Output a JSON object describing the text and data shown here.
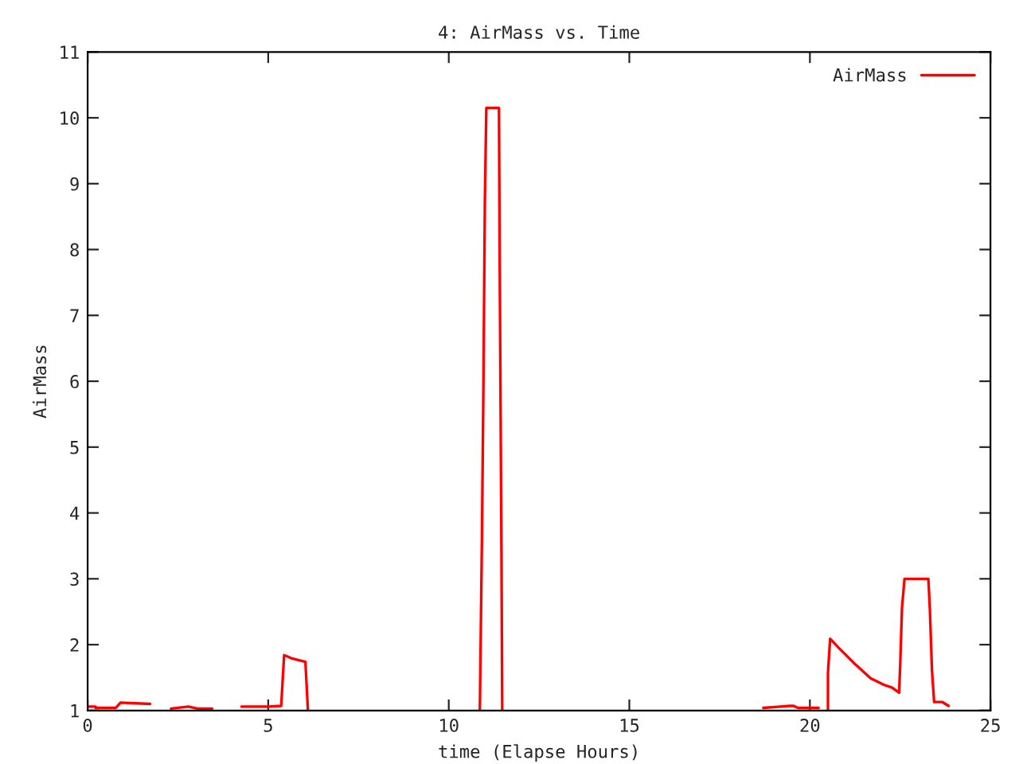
{
  "chart_data": {
    "type": "line",
    "title": "4: AirMass vs. Time",
    "xlabel": "time (Elapse Hours)",
    "ylabel": "AirMass",
    "xlim": [
      0,
      25
    ],
    "xticks": [
      0,
      5,
      10,
      15,
      20,
      25
    ],
    "ylim": [
      1,
      11
    ],
    "yticks": [
      1,
      2,
      3,
      4,
      5,
      6,
      7,
      8,
      9,
      10,
      11
    ],
    "grid": false,
    "legend": "top right",
    "marker": "none",
    "line_style": "solid",
    "series": [
      {
        "name": "AirMass",
        "color": "#ff0000",
        "x": [
          0,
          0.22,
          0.22,
          0.78,
          0.91,
          1.73,
          1.74,
          2.31,
          2.79,
          3.04,
          3.45,
          3.46,
          4.26,
          5.0,
          5.36,
          5.44,
          5.54,
          5.66,
          6.03,
          6.1,
          6.11,
          10.86,
          10.88,
          10.92,
          10.96,
          11.0,
          11.04,
          11.39,
          11.41,
          11.46,
          11.48,
          11.49,
          18.71,
          19.18,
          19.44,
          19.55,
          19.67,
          20.24,
          20.25,
          20.5,
          20.5,
          20.56,
          20.8,
          21.24,
          21.68,
          22.05,
          22.27,
          22.47,
          22.5,
          22.55,
          22.62,
          23.28,
          23.32,
          23.38,
          23.44,
          23.66,
          23.84
        ],
        "values": [
          1.06,
          1.06,
          1.04,
          1.04,
          1.12,
          1.1,
          null,
          1.03,
          1.06,
          1.03,
          1.03,
          null,
          1.06,
          1.06,
          1.07,
          1.84,
          1.82,
          1.79,
          1.74,
          1,
          null,
          1,
          1.89,
          3.68,
          5.98,
          8.75,
          10.15,
          10.15,
          7.85,
          3.29,
          1,
          null,
          1.04,
          1.06,
          1.07,
          1.07,
          1.04,
          1.04,
          null,
          1,
          1.57,
          2.09,
          1.95,
          1.71,
          1.49,
          1.39,
          1.35,
          1.27,
          1.69,
          2.56,
          3.0,
          3.0,
          2.56,
          1.61,
          1.13,
          1.13,
          1.07
        ]
      }
    ]
  }
}
